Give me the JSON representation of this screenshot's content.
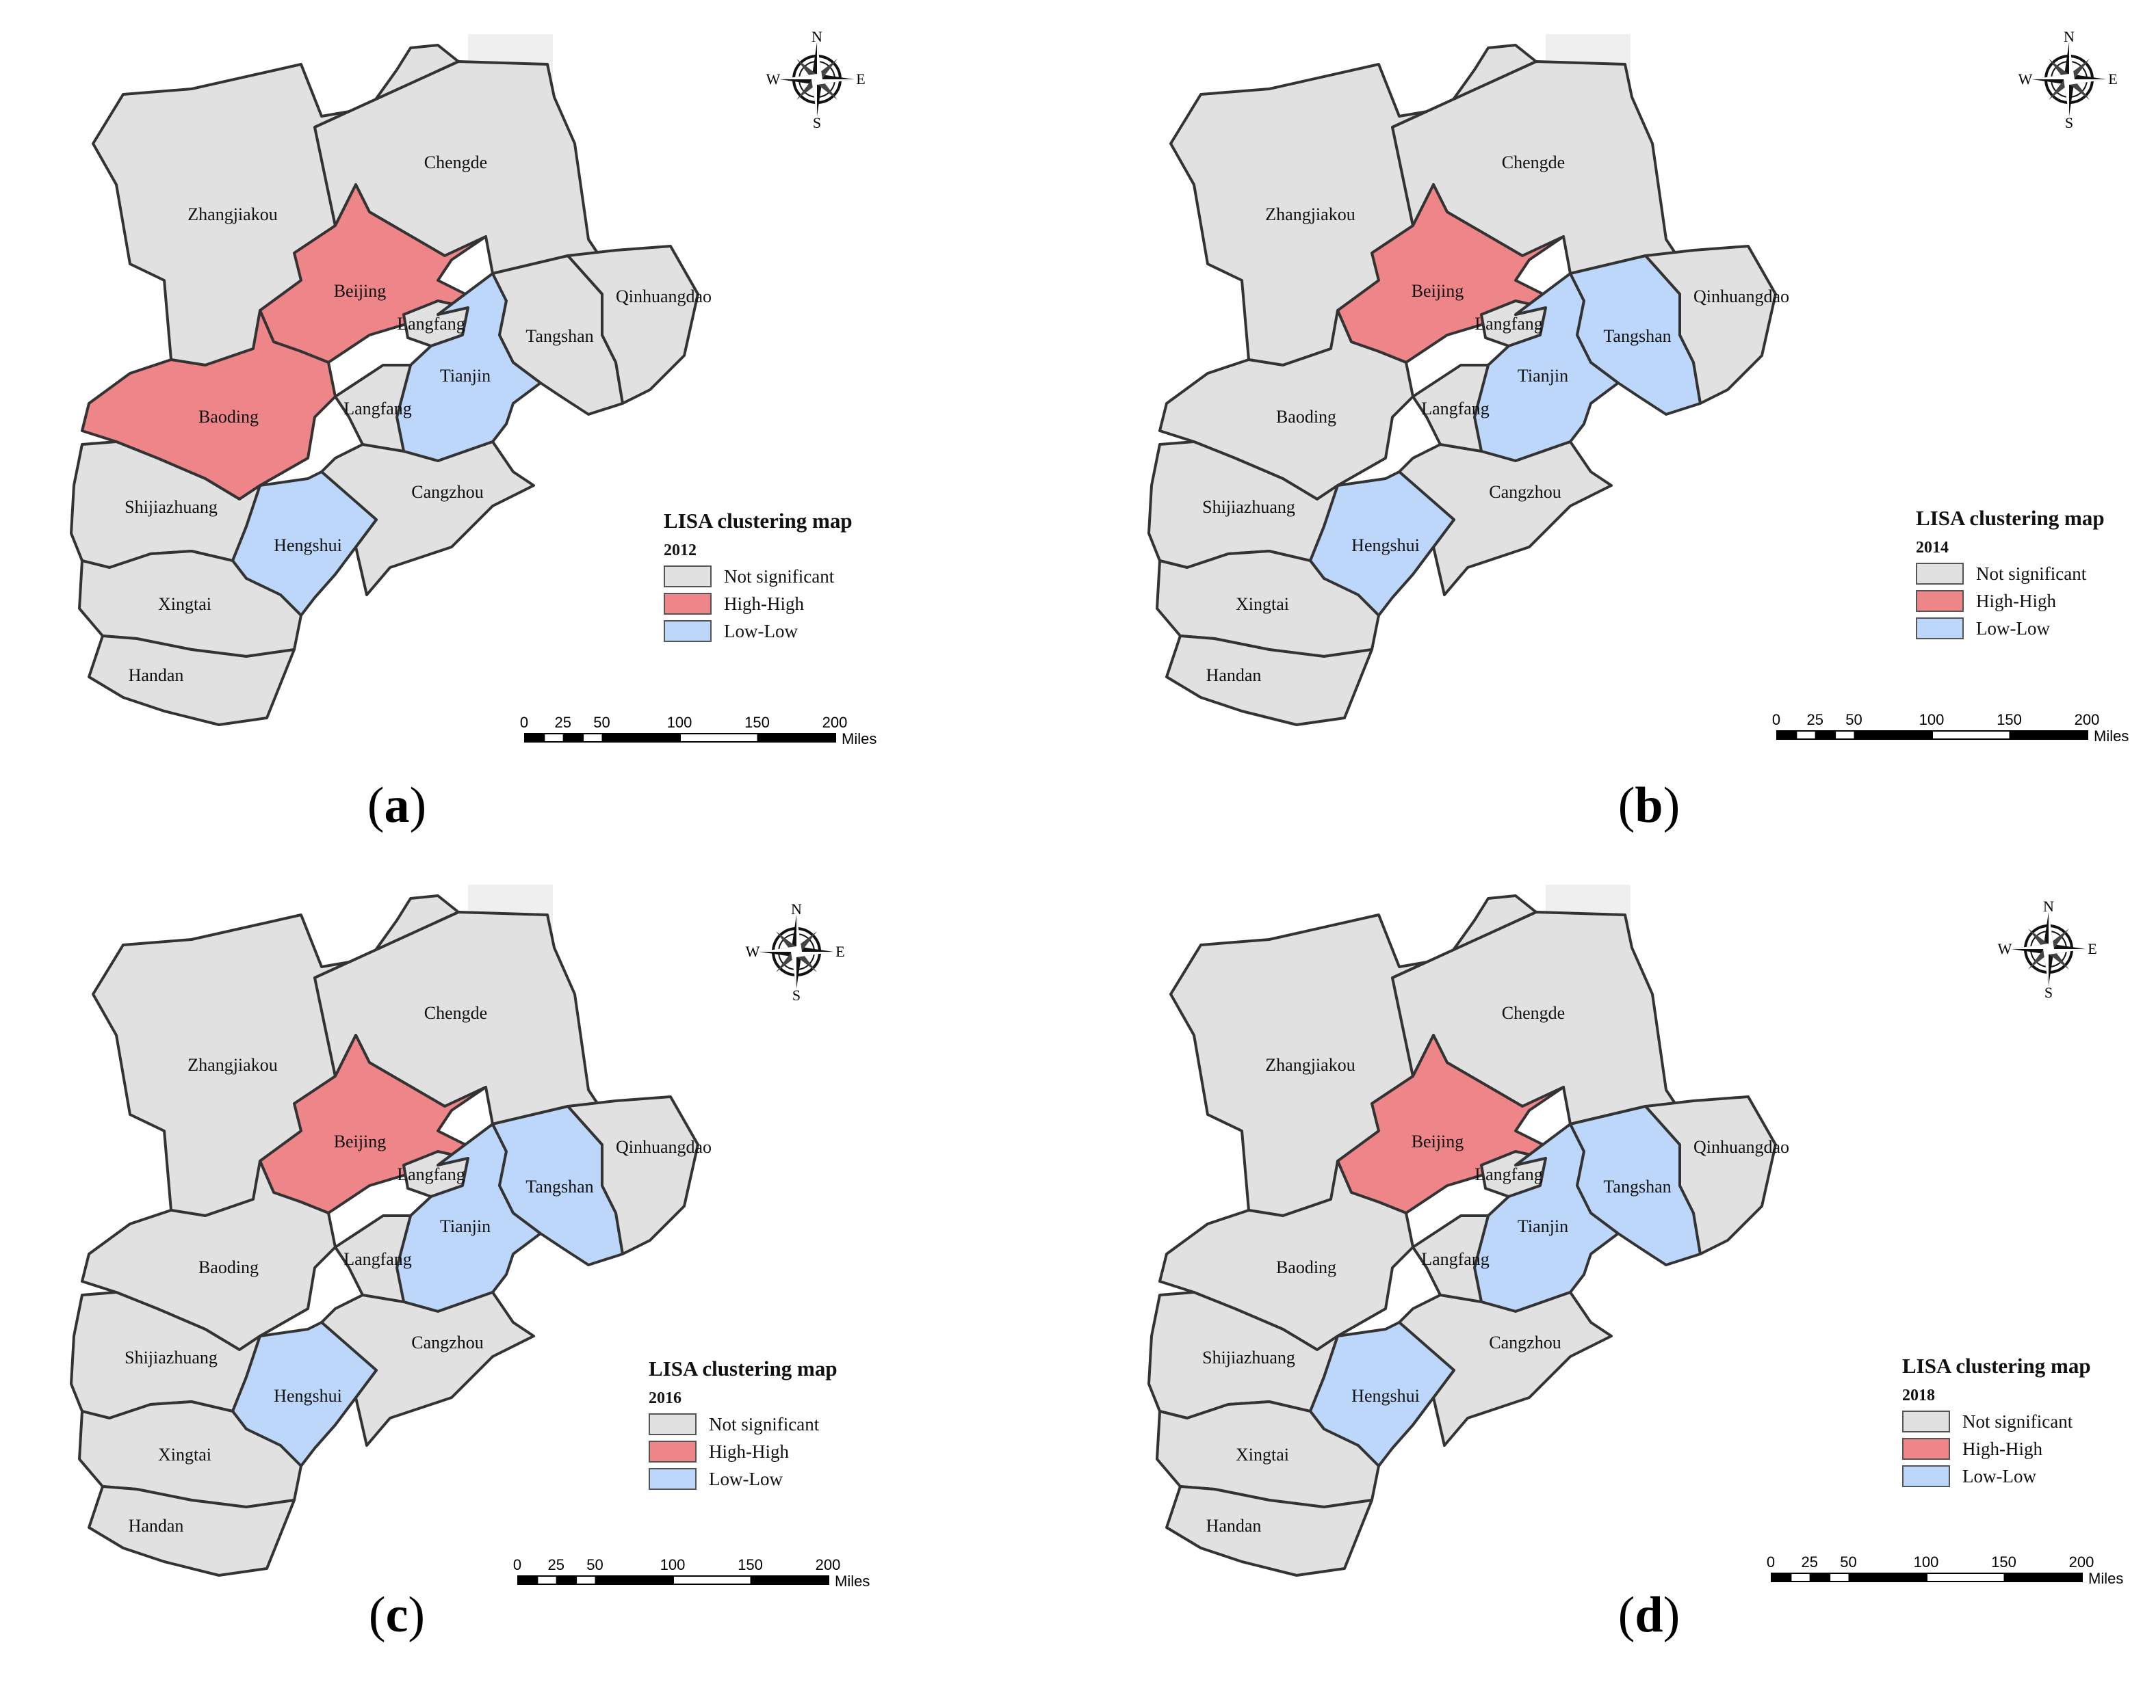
{
  "legend": {
    "title": "LISA clustering map",
    "items": [
      {
        "key": "ns",
        "label": "Not significant",
        "color": "#e1e1e1"
      },
      {
        "key": "hh",
        "label": "High-High",
        "color": "#ee8589"
      },
      {
        "key": "ll",
        "label": "Low-Low",
        "color": "#bdd7fb"
      }
    ]
  },
  "scalebar": {
    "ticks": [
      "0",
      "25",
      "50",
      "100",
      "150",
      "200"
    ],
    "units": "Miles"
  },
  "compass": {
    "n": "N",
    "s": "S",
    "e": "E",
    "w": "W"
  },
  "panels": [
    {
      "caption_letter": "a",
      "year": "2012",
      "classes": {
        "zhangjiakou": "ns",
        "chengde": "ns",
        "beijing": "hh",
        "langfang_n": "ns",
        "tianjin": "ll",
        "tangshan": "ns",
        "qinhuangdao": "ns",
        "baoding": "hh",
        "langfang_s": "ns",
        "cangzhou": "ns",
        "shijiazhuang": "ns",
        "hengshui": "ll",
        "xingtai": "ns",
        "handan": "ns"
      }
    },
    {
      "caption_letter": "b",
      "year": "2014",
      "classes": {
        "zhangjiakou": "ns",
        "chengde": "ns",
        "beijing": "hh",
        "langfang_n": "ns",
        "tianjin": "ll",
        "tangshan": "ll",
        "qinhuangdao": "ns",
        "baoding": "ns",
        "langfang_s": "ns",
        "cangzhou": "ns",
        "shijiazhuang": "ns",
        "hengshui": "ll",
        "xingtai": "ns",
        "handan": "ns"
      }
    },
    {
      "caption_letter": "c",
      "year": "2016",
      "classes": {
        "zhangjiakou": "ns",
        "chengde": "ns",
        "beijing": "hh",
        "langfang_n": "ns",
        "tianjin": "ll",
        "tangshan": "ll",
        "qinhuangdao": "ns",
        "baoding": "ns",
        "langfang_s": "ns",
        "cangzhou": "ns",
        "shijiazhuang": "ns",
        "hengshui": "ll",
        "xingtai": "ns",
        "handan": "ns"
      }
    },
    {
      "caption_letter": "d",
      "year": "2018",
      "classes": {
        "zhangjiakou": "ns",
        "chengde": "ns",
        "beijing": "hh",
        "langfang_n": "ns",
        "tianjin": "ll",
        "tangshan": "ll",
        "qinhuangdao": "ns",
        "baoding": "ns",
        "langfang_s": "ns",
        "cangzhou": "ns",
        "shijiazhuang": "ns",
        "hengshui": "ll",
        "xingtai": "ns",
        "handan": "ns"
      }
    }
  ],
  "region_labels": {
    "zhangjiakou": "Zhangjiakou",
    "chengde": "Chengde",
    "beijing": "Beijing",
    "langfang_n": "Langfang",
    "tianjin": "Tianjin",
    "tangshan": "Tangshan",
    "qinhuangdao": "Qinhuangdao",
    "baoding": "Baoding",
    "langfang_s": "Langfang",
    "cangzhou": "Cangzhou",
    "shijiazhuang": "Shijiazhuang",
    "hengshui": "Hengshui",
    "xingtai": "Xingtai",
    "handan": "Handan"
  }
}
